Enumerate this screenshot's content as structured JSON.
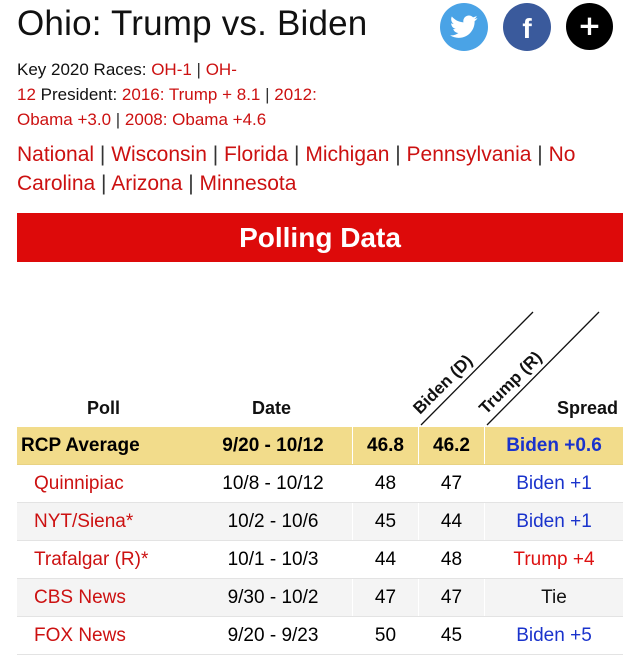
{
  "page": {
    "title": "Ohio: Trump vs. Biden"
  },
  "share": {
    "twitter_icon": "twitter-bird-icon",
    "facebook_icon": "facebook-f-icon",
    "more_icon": "plus-icon",
    "facebook_glyph": "f",
    "more_glyph": "+"
  },
  "key_races": {
    "label": "Key 2020 Races: ",
    "oh1": "OH-1",
    "oh12_part1": "OH-",
    "oh12_part2": "12",
    "president_label": " President: ",
    "p2016": "2016: Trump + 8.1",
    "p2012_part1": "2012:",
    "p2012_part2": "Obama +3.0",
    "p2008": "2008: Obama +4.6",
    "sep": " | "
  },
  "nav": {
    "links_line1": [
      "National",
      "Wisconsin",
      "Florida",
      "Michigan",
      "Pennsylvania",
      "No"
    ],
    "links_line2": [
      "Carolina",
      "Arizona",
      "Minnesota"
    ],
    "sep": " | "
  },
  "banner": {
    "label": "Polling Data"
  },
  "table": {
    "headers": {
      "poll": "Poll",
      "date": "Date",
      "biden": "Biden (D)",
      "trump": "Trump (R)",
      "spread": "Spread"
    },
    "average": {
      "poll": "RCP Average",
      "date": "9/20 - 10/12",
      "biden": "46.8",
      "trump": "46.2",
      "spread": "Biden +0.6"
    },
    "rows": [
      {
        "poll": "Quinnipiac",
        "date": "10/8 - 10/12",
        "biden": "48",
        "trump": "47",
        "spread": "Biden +1"
      },
      {
        "poll": "NYT/Siena*",
        "date": "10/2 - 10/6",
        "biden": "45",
        "trump": "44",
        "spread": "Biden +1"
      },
      {
        "poll": "Trafalgar (R)*",
        "date": "10/1 - 10/3",
        "biden": "44",
        "trump": "48",
        "spread": "Trump +4"
      },
      {
        "poll": "CBS News",
        "date": "9/30 - 10/2",
        "biden": "47",
        "trump": "47",
        "spread": "Tie"
      },
      {
        "poll": "FOX News",
        "date": "9/20 - 9/23",
        "biden": "50",
        "trump": "45",
        "spread": "Biden +5"
      }
    ]
  },
  "colors": {
    "link_red": "#cc1111",
    "banner_red": "#dd0a0a",
    "average_bg": "#f2dc8b",
    "biden_blue": "#1a33cc",
    "trump_red": "#dd1111",
    "twitter_blue": "#4aa3e6",
    "facebook_blue": "#3a5a9c"
  }
}
